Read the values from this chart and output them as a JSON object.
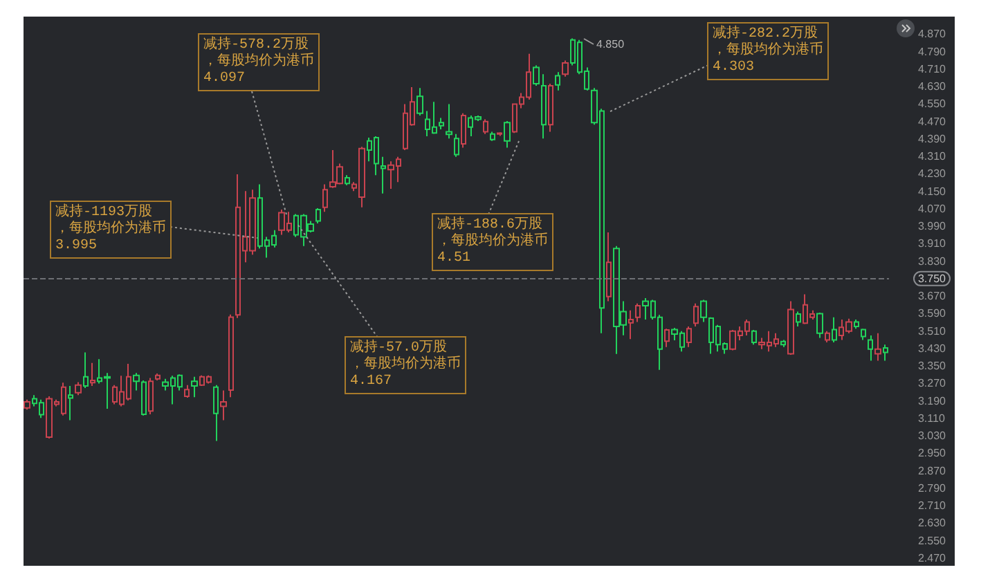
{
  "chart_data": {
    "type": "candlestick",
    "categories": [
      null,
      null,
      null,
      null,
      null,
      null,
      null,
      null,
      null,
      null,
      null,
      null,
      null,
      null,
      null,
      null,
      null,
      null,
      null,
      null,
      null,
      null,
      null,
      null,
      null,
      null,
      null,
      null,
      null,
      null,
      null,
      null,
      null,
      null,
      null,
      null,
      null,
      null,
      null,
      null,
      null,
      null,
      null,
      null,
      null,
      null,
      null,
      null,
      null,
      null,
      null,
      null,
      null,
      null,
      null,
      null,
      null,
      null,
      null,
      null,
      null,
      null,
      null,
      null,
      null,
      null,
      null,
      null,
      null,
      null,
      null,
      null,
      null,
      null,
      null,
      null,
      null,
      null,
      null,
      null,
      null,
      null,
      null,
      null,
      null,
      null,
      null,
      null,
      null,
      null,
      null,
      null,
      null,
      null,
      null,
      null,
      null,
      null,
      null,
      null,
      null,
      null,
      null,
      null,
      null,
      null,
      null,
      null,
      null,
      null,
      null,
      null,
      null,
      null,
      null,
      null,
      null,
      null,
      null
    ],
    "ohlc": [
      [
        3.158,
        3.196,
        3.15,
        3.186
      ],
      [
        3.2,
        3.217,
        3.165,
        3.179
      ],
      [
        3.182,
        3.196,
        3.112,
        3.127
      ],
      [
        3.024,
        3.211,
        3.018,
        3.2
      ],
      [
        3.175,
        3.196,
        3.165,
        3.186
      ],
      [
        3.133,
        3.274,
        3.123,
        3.253
      ],
      [
        3.217,
        3.259,
        3.102,
        3.203
      ],
      [
        3.228,
        3.276,
        3.217,
        3.263
      ],
      [
        3.301,
        3.412,
        3.249,
        3.259
      ],
      [
        3.274,
        3.364,
        3.259,
        3.284
      ],
      [
        3.295,
        3.381,
        3.27,
        3.28
      ],
      [
        3.301,
        3.318,
        3.154,
        3.295
      ],
      [
        3.186,
        3.263,
        3.175,
        3.253
      ],
      [
        3.175,
        3.305,
        3.165,
        3.232
      ],
      [
        3.2,
        3.36,
        3.192,
        3.301
      ],
      [
        3.307,
        3.318,
        3.238,
        3.28
      ],
      [
        3.276,
        3.284,
        3.123,
        3.129
      ],
      [
        3.144,
        3.295,
        3.129,
        3.28
      ],
      [
        3.291,
        3.316,
        3.284,
        3.307
      ],
      [
        3.276,
        3.291,
        3.238,
        3.259
      ],
      [
        3.295,
        3.305,
        3.175,
        3.259
      ],
      [
        3.307,
        3.312,
        3.238,
        3.255
      ],
      [
        3.211,
        3.263,
        3.205,
        3.242
      ],
      [
        3.28,
        3.301,
        3.207,
        3.259
      ],
      [
        3.263,
        3.307,
        3.259,
        3.301
      ],
      [
        3.276,
        3.307,
        3.27,
        3.301
      ],
      [
        3.253,
        3.263,
        3.007,
        3.133
      ],
      [
        3.165,
        3.238,
        3.102,
        3.186
      ],
      [
        3.24,
        3.586,
        3.207,
        3.574
      ],
      [
        3.584,
        4.228,
        3.57,
        4.077
      ],
      [
        3.878,
        4.151,
        3.825,
        3.941
      ],
      [
        3.878,
        4.157,
        3.86,
        4.119
      ],
      [
        4.119,
        4.182,
        3.888,
        3.899
      ],
      [
        3.926,
        3.941,
        3.846,
        3.899
      ],
      [
        3.947,
        3.972,
        3.893,
        3.905
      ],
      [
        3.972,
        4.066,
        3.951,
        4.052
      ],
      [
        3.972,
        4.056,
        3.962,
        4.003
      ],
      [
        4.039,
        4.046,
        3.941,
        3.951
      ],
      [
        4.039,
        4.046,
        3.899,
        3.941
      ],
      [
        4.0,
        4.014,
        3.962,
        3.968
      ],
      [
        4.066,
        4.073,
        4.003,
        4.014
      ],
      [
        4.077,
        4.182,
        4.056,
        4.157
      ],
      [
        4.171,
        4.339,
        4.165,
        4.192
      ],
      [
        4.186,
        4.277,
        4.182,
        4.262
      ],
      [
        4.212,
        4.224,
        4.178,
        4.186
      ],
      [
        4.165,
        4.192,
        4.151,
        4.182
      ],
      [
        4.123,
        4.354,
        4.077,
        4.346
      ],
      [
        4.381,
        4.396,
        4.287,
        4.339
      ],
      [
        4.396,
        4.402,
        4.224,
        4.277
      ],
      [
        4.266,
        4.308,
        4.14,
        4.255
      ],
      [
        4.249,
        4.287,
        4.161,
        4.27
      ],
      [
        4.266,
        4.308,
        4.192,
        4.297
      ],
      [
        4.346,
        4.549,
        4.339,
        4.507
      ],
      [
        4.455,
        4.627,
        4.45,
        4.56
      ],
      [
        4.585,
        4.623,
        4.497,
        4.507
      ],
      [
        4.48,
        4.518,
        4.402,
        4.434
      ],
      [
        4.444,
        4.56,
        4.413,
        4.417
      ],
      [
        4.465,
        4.486,
        4.434,
        4.45
      ],
      [
        4.423,
        4.549,
        4.392,
        4.411
      ],
      [
        4.392,
        4.412,
        4.308,
        4.318
      ],
      [
        4.367,
        4.507,
        4.35,
        4.497
      ],
      [
        4.486,
        4.497,
        4.402,
        4.444
      ],
      [
        4.491,
        4.497,
        4.472,
        4.48
      ],
      [
        4.423,
        4.48,
        4.412,
        4.469
      ],
      [
        4.412,
        4.423,
        4.381,
        4.387
      ],
      [
        4.412,
        4.42,
        4.404,
        4.416
      ],
      [
        4.465,
        4.472,
        4.35,
        4.381
      ],
      [
        4.423,
        4.549,
        4.417,
        4.549
      ],
      [
        4.549,
        4.6,
        4.53,
        4.581
      ],
      [
        4.581,
        4.78,
        4.57,
        4.696
      ],
      [
        4.717,
        4.727,
        4.633,
        4.643
      ],
      [
        4.633,
        4.686,
        4.392,
        4.455
      ],
      [
        4.455,
        4.643,
        4.423,
        4.633
      ],
      [
        4.679,
        4.696,
        4.612,
        4.637
      ],
      [
        4.686,
        4.749,
        4.675,
        4.738
      ],
      [
        4.843,
        4.85,
        4.727,
        4.738
      ],
      [
        4.832,
        4.843,
        4.686,
        4.696
      ],
      [
        4.7,
        4.717,
        4.612,
        4.618
      ],
      [
        4.612,
        4.623,
        4.455,
        4.465
      ],
      [
        4.518,
        4.528,
        3.5,
        3.616
      ],
      [
        3.668,
        3.962,
        3.647,
        3.825
      ],
      [
        3.888,
        3.899,
        3.405,
        3.531
      ],
      [
        3.599,
        3.647,
        3.491,
        3.538
      ],
      [
        3.548,
        3.605,
        3.473,
        3.563
      ],
      [
        3.573,
        3.636,
        3.552,
        3.626
      ],
      [
        3.647,
        3.661,
        3.563,
        3.626
      ],
      [
        3.647,
        3.653,
        3.563,
        3.573
      ],
      [
        3.573,
        3.584,
        3.332,
        3.427
      ],
      [
        3.464,
        3.521,
        3.437,
        3.515
      ],
      [
        3.517,
        3.525,
        3.468,
        3.496
      ],
      [
        3.5,
        3.51,
        3.416,
        3.437
      ],
      [
        3.458,
        3.531,
        3.437,
        3.521
      ],
      [
        3.546,
        3.636,
        3.531,
        3.622
      ],
      [
        3.647,
        3.653,
        3.552,
        3.573
      ],
      [
        3.569,
        3.573,
        3.406,
        3.458
      ],
      [
        3.531,
        3.538,
        3.416,
        3.448
      ],
      [
        3.452,
        3.458,
        3.406,
        3.427
      ],
      [
        3.427,
        3.515,
        3.422,
        3.51
      ],
      [
        3.49,
        3.531,
        3.468,
        3.51
      ],
      [
        3.51,
        3.563,
        3.49,
        3.552
      ],
      [
        3.51,
        3.515,
        3.448,
        3.458
      ],
      [
        3.448,
        3.479,
        3.427,
        3.458
      ],
      [
        3.443,
        3.51,
        3.416,
        3.458
      ],
      [
        3.452,
        3.5,
        3.437,
        3.473
      ],
      [
        3.462,
        3.469,
        3.437,
        3.448
      ],
      [
        3.406,
        3.647,
        3.401,
        3.609
      ],
      [
        3.588,
        3.599,
        3.531,
        3.552
      ],
      [
        3.546,
        3.678,
        3.542,
        3.63
      ],
      [
        3.573,
        3.605,
        3.563,
        3.588
      ],
      [
        3.59,
        3.594,
        3.479,
        3.5
      ],
      [
        3.469,
        3.51,
        3.458,
        3.5
      ],
      [
        3.517,
        3.573,
        3.458,
        3.469
      ],
      [
        3.49,
        3.563,
        3.469,
        3.527
      ],
      [
        3.51,
        3.567,
        3.5,
        3.552
      ],
      [
        3.552,
        3.563,
        3.521,
        3.531
      ],
      [
        3.517,
        3.521,
        3.469,
        3.485
      ],
      [
        3.469,
        3.49,
        3.374,
        3.427
      ],
      [
        3.406,
        3.5,
        3.374,
        3.427
      ],
      [
        3.433,
        3.448,
        3.374,
        3.412
      ]
    ],
    "colors": [
      "#c9434f",
      "#22d35c",
      "#22d35c",
      "#c9434f",
      "#c9434f",
      "#c9434f",
      "#22d35c",
      "#c9434f",
      "#22d35c",
      "#c9434f",
      "#22d35c",
      "#22d35c",
      "#c9434f",
      "#c9434f",
      "#c9434f",
      "#22d35c",
      "#22d35c",
      "#c9434f",
      "#c9434f",
      "#22d35c",
      "#22d35c",
      "#22d35c",
      "#c9434f",
      "#22d35c",
      "#c9434f",
      "#c9434f",
      "#22d35c",
      "#c9434f",
      "#c9434f",
      "#c9434f",
      "#c9434f",
      "#c9434f",
      "#22d35c",
      "#22d35c",
      "#22d35c",
      "#c9434f",
      "#c9434f",
      "#22d35c",
      "#22d35c",
      "#22d35c",
      "#22d35c",
      "#c9434f",
      "#c9434f",
      "#c9434f",
      "#22d35c",
      "#c9434f",
      "#c9434f",
      "#22d35c",
      "#22d35c",
      "#22d35c",
      "#c9434f",
      "#c9434f",
      "#c9434f",
      "#c9434f",
      "#22d35c",
      "#22d35c",
      "#22d35c",
      "#22d35c",
      "#22d35c",
      "#22d35c",
      "#c9434f",
      "#22d35c",
      "#22d35c",
      "#c9434f",
      "#22d35c",
      "#c9434f",
      "#22d35c",
      "#c9434f",
      "#c9434f",
      "#c9434f",
      "#22d35c",
      "#22d35c",
      "#c9434f",
      "#22d35c",
      "#c9434f",
      "#22d35c",
      "#22d35c",
      "#22d35c",
      "#22d35c",
      "#22d35c",
      "#c9434f",
      "#22d35c",
      "#22d35c",
      "#c9434f",
      "#c9434f",
      "#22d35c",
      "#22d35c",
      "#22d35c",
      "#c9434f",
      "#22d35c",
      "#22d35c",
      "#c9434f",
      "#c9434f",
      "#22d35c",
      "#22d35c",
      "#22d35c",
      "#22d35c",
      "#c9434f",
      "#c9434f",
      "#c9434f",
      "#22d35c",
      "#c9434f",
      "#c9434f",
      "#c9434f",
      "#22d35c",
      "#c9434f",
      "#22d35c",
      "#c9434f",
      "#c9434f",
      "#22d35c",
      "#c9434f",
      "#22d35c",
      "#c9434f",
      "#c9434f",
      "#22d35c",
      "#22d35c",
      "#22d35c",
      "#c9434f",
      "#22d35c"
    ],
    "ylim": [
      2.47,
      4.95
    ],
    "yticks": [
      {
        "value": 2.47,
        "label": "2.470"
      },
      {
        "value": 2.55,
        "label": "2.550"
      },
      {
        "value": 2.63,
        "label": "2.630"
      },
      {
        "value": 2.71,
        "label": "2.710"
      },
      {
        "value": 2.79,
        "label": "2.790"
      },
      {
        "value": 2.87,
        "label": "2.870"
      },
      {
        "value": 2.95,
        "label": "2.950"
      },
      {
        "value": 3.03,
        "label": "3.030"
      },
      {
        "value": 3.11,
        "label": "3.110"
      },
      {
        "value": 3.19,
        "label": "3.190"
      },
      {
        "value": 3.27,
        "label": "3.270"
      },
      {
        "value": 3.35,
        "label": "3.350"
      },
      {
        "value": 3.43,
        "label": "3.430"
      },
      {
        "value": 3.51,
        "label": "3.510"
      },
      {
        "value": 3.59,
        "label": "3.590"
      },
      {
        "value": 3.67,
        "label": "3.670"
      },
      {
        "value": 3.75,
        "label": "3.750"
      },
      {
        "value": 3.83,
        "label": "3.830"
      },
      {
        "value": 3.91,
        "label": "3.910"
      },
      {
        "value": 3.99,
        "label": "3.990"
      },
      {
        "value": 4.07,
        "label": "4.070"
      },
      {
        "value": 4.15,
        "label": "4.150"
      },
      {
        "value": 4.23,
        "label": "4.230"
      },
      {
        "value": 4.31,
        "label": "4.310"
      },
      {
        "value": 4.39,
        "label": "4.390"
      },
      {
        "value": 4.47,
        "label": "4.470"
      },
      {
        "value": 4.55,
        "label": "4.550"
      },
      {
        "value": 4.63,
        "label": "4.630"
      },
      {
        "value": 4.71,
        "label": "4.710"
      },
      {
        "value": 4.79,
        "label": "4.790"
      },
      {
        "value": 4.87,
        "label": "4.870"
      }
    ],
    "tick_labels": "y",
    "ref_lines": [
      {
        "axis": "y",
        "value": 3.75,
        "line_style": "dashed",
        "color": "#6e7075"
      }
    ],
    "annotations": [
      "减持-1193万股，每股均价为港币3.995",
      "减持-578.2万股，每股均价为港币4.097",
      "减持-57.0万股，每股均价为港币4.167",
      "减持-188.6万股，每股均价为港币4.51",
      "减持-282.2万股，每股均价为港币4.303",
      "4.850"
    ]
  }
}
